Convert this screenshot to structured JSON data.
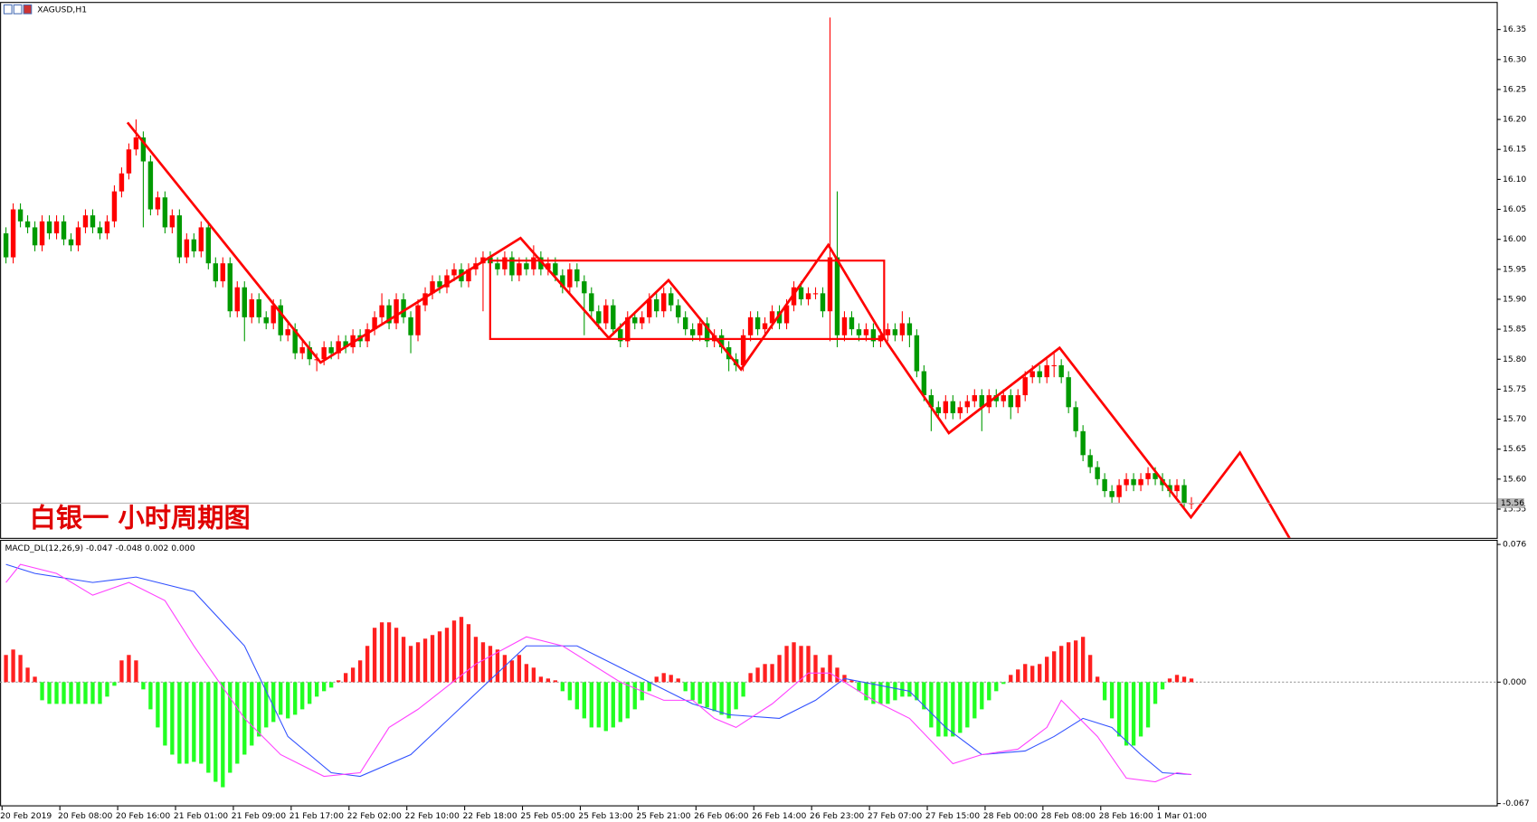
{
  "chart_data": {
    "type": "candlestick",
    "title": "XAGUSD,H1",
    "annotation": "白银一 小时周期图",
    "categories": [
      "20 Feb 2019",
      null,
      null,
      null,
      null,
      null,
      null,
      null,
      "20 Feb 08:00",
      null,
      null,
      null,
      null,
      null,
      null,
      null,
      "20 Feb 16:00",
      null,
      null,
      null,
      null,
      null,
      null,
      null,
      "21 Feb 01:00",
      null,
      null,
      null,
      null,
      null,
      null,
      null,
      "21 Feb 09:00",
      null,
      null,
      null,
      null,
      null,
      null,
      null,
      "21 Feb 17:00",
      null,
      null,
      null,
      null,
      null,
      null,
      null,
      "22 Feb 02:00",
      null,
      null,
      null,
      null,
      null,
      null,
      null,
      "22 Feb 10:00",
      null,
      null,
      null,
      null,
      null,
      null,
      null,
      "22 Feb 18:00",
      null,
      null,
      null,
      null,
      null,
      null,
      null,
      "25 Feb 05:00",
      null,
      null,
      null,
      null,
      null,
      null,
      null,
      "25 Feb 13:00",
      null,
      null,
      null,
      null,
      null,
      null,
      null,
      "25 Feb 21:00",
      null,
      null,
      null,
      null,
      null,
      null,
      null,
      "26 Feb 06:00",
      null,
      null,
      null,
      null,
      null,
      null,
      null,
      "26 Feb 14:00",
      null,
      null,
      null,
      null,
      null,
      null,
      null,
      "26 Feb 23:00",
      null,
      null,
      null,
      null,
      null,
      null,
      null,
      "27 Feb 07:00",
      null,
      null,
      null,
      null,
      null,
      null,
      null,
      "27 Feb 15:00",
      null,
      null,
      null,
      null,
      null,
      null,
      null,
      "28 Feb 00:00",
      null,
      null,
      null,
      null,
      null,
      null,
      null,
      "28 Feb 08:00",
      null,
      null,
      null,
      null,
      null,
      null,
      null,
      "28 Feb 16:00",
      null,
      null,
      null,
      null,
      null,
      null,
      null,
      "1 Mar 01:00",
      null,
      null,
      null,
      null
    ],
    "open": [
      16.01,
      15.97,
      16.05,
      16.03,
      16.02,
      15.99,
      16.03,
      16.01,
      16.03,
      16.0,
      15.99,
      16.02,
      16.04,
      16.02,
      16.01,
      16.03,
      16.08,
      16.11,
      16.15,
      16.17,
      16.13,
      16.05,
      16.07,
      16.02,
      16.04,
      15.97,
      16.0,
      15.98,
      16.02,
      15.96,
      15.93,
      15.96,
      15.88,
      15.92,
      15.87,
      15.9,
      15.87,
      15.86,
      15.89,
      15.84,
      15.85,
      15.81,
      15.82,
      15.8,
      15.8,
      15.82,
      15.81,
      15.83,
      15.82,
      15.84,
      15.83,
      15.85,
      15.87,
      15.89,
      15.86,
      15.9,
      15.87,
      15.84,
      15.89,
      15.91,
      15.93,
      15.92,
      15.94,
      15.95,
      15.93,
      15.95,
      15.96,
      15.97,
      15.96,
      15.95,
      15.97,
      15.94,
      15.96,
      15.95,
      15.97,
      15.95,
      15.96,
      15.94,
      15.92,
      15.95,
      15.93,
      15.91,
      15.88,
      15.86,
      15.89,
      15.85,
      15.83,
      15.87,
      15.86,
      15.87,
      15.9,
      15.88,
      15.91,
      15.89,
      15.87,
      15.85,
      15.84,
      15.86,
      15.83,
      15.84,
      15.82,
      15.8,
      15.79,
      15.84,
      15.87,
      15.85,
      15.86,
      15.88,
      15.86,
      15.89,
      15.92,
      15.9,
      15.91,
      15.91,
      15.88,
      15.97,
      15.84,
      15.87,
      15.85,
      15.84,
      15.85,
      15.83,
      15.84,
      15.85,
      15.84,
      15.86,
      15.84,
      15.78,
      15.74,
      15.72,
      15.71,
      15.73,
      15.71,
      15.72,
      15.73,
      15.74,
      15.72,
      15.74,
      15.73,
      15.74,
      15.72,
      15.74,
      15.77,
      15.78,
      15.77,
      15.79,
      15.79,
      15.77,
      15.72,
      15.68,
      15.64,
      15.62,
      15.6,
      15.58,
      15.57,
      15.59,
      15.6,
      15.59,
      15.6,
      15.61,
      15.6,
      15.59,
      15.58,
      15.59,
      15.56
    ],
    "high": [
      16.02,
      16.06,
      16.06,
      16.04,
      16.03,
      16.04,
      16.04,
      16.04,
      16.04,
      16.01,
      16.03,
      16.05,
      16.05,
      16.03,
      16.04,
      16.09,
      16.12,
      16.16,
      16.2,
      16.18,
      16.14,
      16.08,
      16.08,
      16.05,
      16.05,
      16.01,
      16.01,
      16.03,
      16.03,
      15.97,
      15.97,
      15.97,
      15.93,
      15.93,
      15.91,
      15.91,
      15.88,
      15.9,
      15.9,
      15.86,
      15.86,
      15.83,
      15.83,
      15.81,
      15.83,
      15.83,
      15.84,
      15.84,
      15.85,
      15.85,
      15.86,
      15.88,
      15.91,
      15.9,
      15.91,
      15.91,
      15.88,
      15.9,
      15.92,
      15.94,
      15.94,
      15.95,
      15.96,
      15.96,
      15.96,
      15.97,
      15.98,
      15.98,
      15.97,
      15.98,
      15.98,
      15.97,
      15.97,
      15.99,
      15.98,
      15.97,
      15.97,
      15.95,
      15.96,
      15.96,
      15.94,
      15.92,
      15.89,
      15.9,
      15.9,
      15.86,
      15.88,
      15.88,
      15.88,
      15.91,
      15.91,
      15.92,
      15.92,
      15.9,
      15.88,
      15.86,
      15.87,
      15.87,
      15.85,
      15.85,
      15.83,
      15.81,
      15.85,
      15.88,
      15.88,
      15.87,
      15.89,
      15.89,
      15.9,
      15.93,
      15.93,
      15.92,
      15.92,
      15.92,
      16.37,
      16.08,
      15.88,
      15.88,
      15.86,
      15.86,
      15.86,
      15.85,
      15.86,
      15.86,
      15.88,
      15.87,
      15.85,
      15.79,
      15.75,
      15.73,
      15.74,
      15.74,
      15.73,
      15.74,
      15.75,
      15.75,
      15.75,
      15.75,
      15.75,
      15.75,
      15.75,
      15.78,
      15.79,
      15.79,
      15.8,
      15.81,
      15.8,
      15.78,
      15.73,
      15.69,
      15.65,
      15.63,
      15.61,
      15.59,
      15.6,
      15.61,
      15.61,
      15.61,
      15.62,
      15.62,
      15.61,
      15.6,
      15.6,
      15.6,
      15.57
    ],
    "low": [
      15.96,
      15.96,
      16.02,
      16.01,
      15.98,
      15.98,
      16.0,
      16.0,
      15.99,
      15.98,
      15.98,
      16.01,
      16.01,
      16.0,
      16.0,
      16.02,
      16.07,
      16.1,
      16.14,
      16.02,
      16.04,
      16.04,
      16.01,
      16.01,
      15.96,
      15.96,
      15.97,
      15.97,
      15.95,
      15.92,
      15.92,
      15.87,
      15.87,
      15.83,
      15.86,
      15.86,
      15.85,
      15.85,
      15.83,
      15.83,
      15.8,
      15.8,
      15.79,
      15.78,
      15.79,
      15.8,
      15.8,
      15.81,
      15.81,
      15.82,
      15.82,
      15.84,
      15.86,
      15.85,
      15.85,
      15.86,
      15.81,
      15.83,
      15.88,
      15.9,
      15.91,
      15.91,
      15.93,
      15.92,
      15.92,
      15.94,
      15.88,
      15.95,
      15.94,
      15.94,
      15.93,
      15.93,
      15.94,
      15.94,
      15.94,
      15.94,
      15.93,
      15.91,
      15.91,
      15.92,
      15.84,
      15.87,
      15.85,
      15.85,
      15.84,
      15.82,
      15.82,
      15.85,
      15.85,
      15.86,
      15.87,
      15.87,
      15.88,
      15.86,
      15.84,
      15.83,
      15.83,
      15.82,
      15.82,
      15.81,
      15.78,
      15.78,
      15.78,
      15.83,
      15.84,
      15.84,
      15.85,
      15.85,
      15.85,
      15.88,
      15.89,
      15.89,
      15.9,
      15.87,
      15.83,
      15.82,
      15.83,
      15.84,
      15.83,
      15.83,
      15.82,
      15.82,
      15.83,
      15.83,
      15.83,
      15.82,
      15.77,
      15.73,
      15.68,
      15.7,
      15.7,
      15.7,
      15.7,
      15.71,
      15.72,
      15.68,
      15.71,
      15.72,
      15.72,
      15.7,
      15.71,
      15.73,
      15.76,
      15.76,
      15.76,
      15.77,
      15.76,
      15.71,
      15.67,
      15.63,
      15.61,
      15.59,
      15.57,
      15.56,
      15.56,
      15.58,
      15.58,
      15.58,
      15.59,
      15.59,
      15.58,
      15.57,
      15.57,
      15.55,
      15.55
    ],
    "close": [
      15.97,
      16.05,
      16.03,
      16.02,
      15.99,
      16.03,
      16.01,
      16.03,
      16.0,
      15.99,
      16.02,
      16.04,
      16.02,
      16.01,
      16.03,
      16.08,
      16.11,
      16.15,
      16.17,
      16.13,
      16.05,
      16.07,
      16.02,
      16.04,
      15.97,
      16.0,
      15.98,
      16.02,
      15.96,
      15.93,
      15.96,
      15.88,
      15.92,
      15.87,
      15.9,
      15.87,
      15.86,
      15.89,
      15.84,
      15.85,
      15.81,
      15.82,
      15.8,
      15.8,
      15.82,
      15.81,
      15.83,
      15.82,
      15.84,
      15.83,
      15.85,
      15.87,
      15.89,
      15.86,
      15.9,
      15.87,
      15.84,
      15.89,
      15.91,
      15.93,
      15.92,
      15.94,
      15.95,
      15.93,
      15.95,
      15.96,
      15.97,
      15.96,
      15.95,
      15.97,
      15.94,
      15.96,
      15.95,
      15.97,
      15.95,
      15.96,
      15.94,
      15.92,
      15.95,
      15.93,
      15.91,
      15.88,
      15.86,
      15.89,
      15.85,
      15.83,
      15.87,
      15.86,
      15.87,
      15.9,
      15.88,
      15.91,
      15.89,
      15.87,
      15.85,
      15.84,
      15.86,
      15.83,
      15.84,
      15.82,
      15.8,
      15.79,
      15.84,
      15.87,
      15.85,
      15.86,
      15.88,
      15.86,
      15.89,
      15.92,
      15.9,
      15.91,
      15.91,
      15.88,
      15.97,
      15.84,
      15.87,
      15.85,
      15.84,
      15.85,
      15.83,
      15.84,
      15.85,
      15.84,
      15.86,
      15.84,
      15.78,
      15.74,
      15.72,
      15.71,
      15.73,
      15.71,
      15.72,
      15.73,
      15.74,
      15.72,
      15.74,
      15.73,
      15.74,
      15.72,
      15.74,
      15.77,
      15.78,
      15.77,
      15.79,
      15.79,
      15.77,
      15.72,
      15.68,
      15.64,
      15.62,
      15.6,
      15.58,
      15.57,
      15.59,
      15.6,
      15.59,
      15.6,
      15.61,
      15.6,
      15.59,
      15.58,
      15.59,
      15.56,
      15.56
    ],
    "up_color": "#ff0000",
    "down_color": "#009a00",
    "ylim": [
      15.502,
      16.396
    ],
    "yticks": [
      16.35,
      {
        "value": 16.3,
        "label": "16.30"
      },
      16.25,
      {
        "value": 16.2,
        "label": "16.20"
      },
      16.15,
      {
        "value": 16.1,
        "label": "16.10"
      },
      16.05,
      {
        "value": 16,
        "label": "16.00"
      },
      15.95,
      {
        "value": 15.9,
        "label": "15.90"
      },
      15.85,
      {
        "value": 15.8,
        "label": "15.80"
      },
      15.75,
      {
        "value": 15.7,
        "label": "15.70"
      },
      15.65,
      {
        "value": 15.6,
        "label": "15.60"
      },
      15.55
    ],
    "last_price": 15.56,
    "indicator": {
      "type": "macd",
      "title": "MACD_DL(12,26,9) -0.047 -0.048 0.002 0.000",
      "values": [
        0.015,
        0.018,
        0.015,
        0.008,
        0.003,
        -0.01,
        -0.012,
        -0.012,
        -0.012,
        -0.012,
        -0.012,
        -0.012,
        -0.012,
        -0.012,
        -0.008,
        -0.002,
        0.012,
        0.015,
        0.012,
        -0.004,
        -0.015,
        -0.025,
        -0.035,
        -0.04,
        -0.045,
        -0.045,
        -0.044,
        -0.045,
        -0.05,
        -0.055,
        -0.058,
        -0.05,
        -0.045,
        -0.04,
        -0.035,
        -0.03,
        -0.025,
        -0.022,
        -0.018,
        -0.02,
        -0.018,
        -0.015,
        -0.012,
        -0.008,
        -0.005,
        -0.003,
        0.001,
        0.005,
        0.008,
        0.012,
        0.02,
        0.03,
        0.033,
        0.033,
        0.03,
        0.025,
        0.02,
        0.022,
        0.024,
        0.026,
        0.028,
        0.03,
        0.034,
        0.036,
        0.032,
        0.025,
        0.022,
        0.02,
        0.018,
        0.015,
        0.012,
        0.015,
        0.01,
        0.008,
        0.003,
        0.002,
        0.001,
        -0.005,
        -0.01,
        -0.015,
        -0.02,
        -0.025,
        -0.025,
        -0.027,
        -0.025,
        -0.022,
        -0.02,
        -0.015,
        -0.01,
        -0.005,
        0.003,
        0.005,
        0.004,
        0.002,
        -0.005,
        -0.01,
        -0.012,
        -0.014,
        -0.016,
        -0.018,
        -0.02,
        -0.015,
        -0.008,
        0.005,
        0.008,
        0.01,
        0.01,
        0.015,
        0.02,
        0.022,
        0.02,
        0.02,
        0.015,
        0.008,
        0.015,
        0.008,
        0.004,
        0.001,
        -0.005,
        -0.01,
        -0.012,
        -0.012,
        -0.012,
        -0.01,
        -0.008,
        -0.008,
        -0.01,
        -0.015,
        -0.025,
        -0.03,
        -0.03,
        -0.03,
        -0.028,
        -0.025,
        -0.02,
        -0.015,
        -0.01,
        -0.005,
        -0.001,
        0.004,
        0.007,
        0.01,
        0.009,
        0.01,
        0.014,
        0.017,
        0.02,
        0.022,
        0.023,
        0.025,
        0.015,
        0.003,
        -0.01,
        -0.02,
        -0.03,
        -0.035,
        -0.035,
        -0.03,
        -0.025,
        -0.012,
        -0.004,
        0.002,
        0.004,
        0.003,
        0.002
      ],
      "up_color": "#ff2020",
      "down_color": "#22ff22",
      "series": [
        {
          "color": "#3050ff",
          "x": [
            0,
            4,
            12,
            18,
            26,
            33,
            39,
            45,
            49,
            56,
            64,
            72,
            79,
            84,
            89,
            95,
            100,
            107,
            112,
            116,
            125,
            130,
            135,
            141,
            145,
            149,
            153,
            157,
            160,
            164
          ],
          "values": [
            0.065,
            0.06,
            0.055,
            0.058,
            0.05,
            0.02,
            -0.03,
            -0.05,
            -0.052,
            -0.04,
            -0.01,
            0.02,
            0.02,
            0.01,
            0,
            -0.012,
            -0.018,
            -0.02,
            -0.01,
            0.002,
            -0.005,
            -0.025,
            -0.04,
            -0.038,
            -0.03,
            -0.02,
            -0.025,
            -0.04,
            -0.05,
            -0.051
          ]
        },
        {
          "color": "#ff40ff",
          "x": [
            0,
            2,
            7,
            12,
            17,
            22,
            26,
            33,
            38,
            44,
            49,
            53,
            57,
            65,
            72,
            77,
            85,
            91,
            95,
            98,
            101,
            106,
            111,
            114,
            120,
            125,
            131,
            135,
            140,
            144,
            146,
            151,
            155,
            159,
            162,
            164
          ],
          "values": [
            0.055,
            0.065,
            0.06,
            0.048,
            0.055,
            0.045,
            0.02,
            -0.02,
            -0.04,
            -0.052,
            -0.05,
            -0.025,
            -0.015,
            0.01,
            0.025,
            0.02,
            0,
            -0.01,
            -0.01,
            -0.02,
            -0.025,
            -0.012,
            0.005,
            0.005,
            -0.01,
            -0.02,
            -0.045,
            -0.04,
            -0.037,
            -0.025,
            -0.01,
            -0.03,
            -0.053,
            -0.055,
            -0.05,
            -0.051
          ]
        }
      ],
      "y2lim": [
        -0.068,
        0.078
      ],
      "y2ticks": [
        0.076,
        {
          "value": 0,
          "label": "0.000"
        },
        -0.067
      ]
    }
  }
}
